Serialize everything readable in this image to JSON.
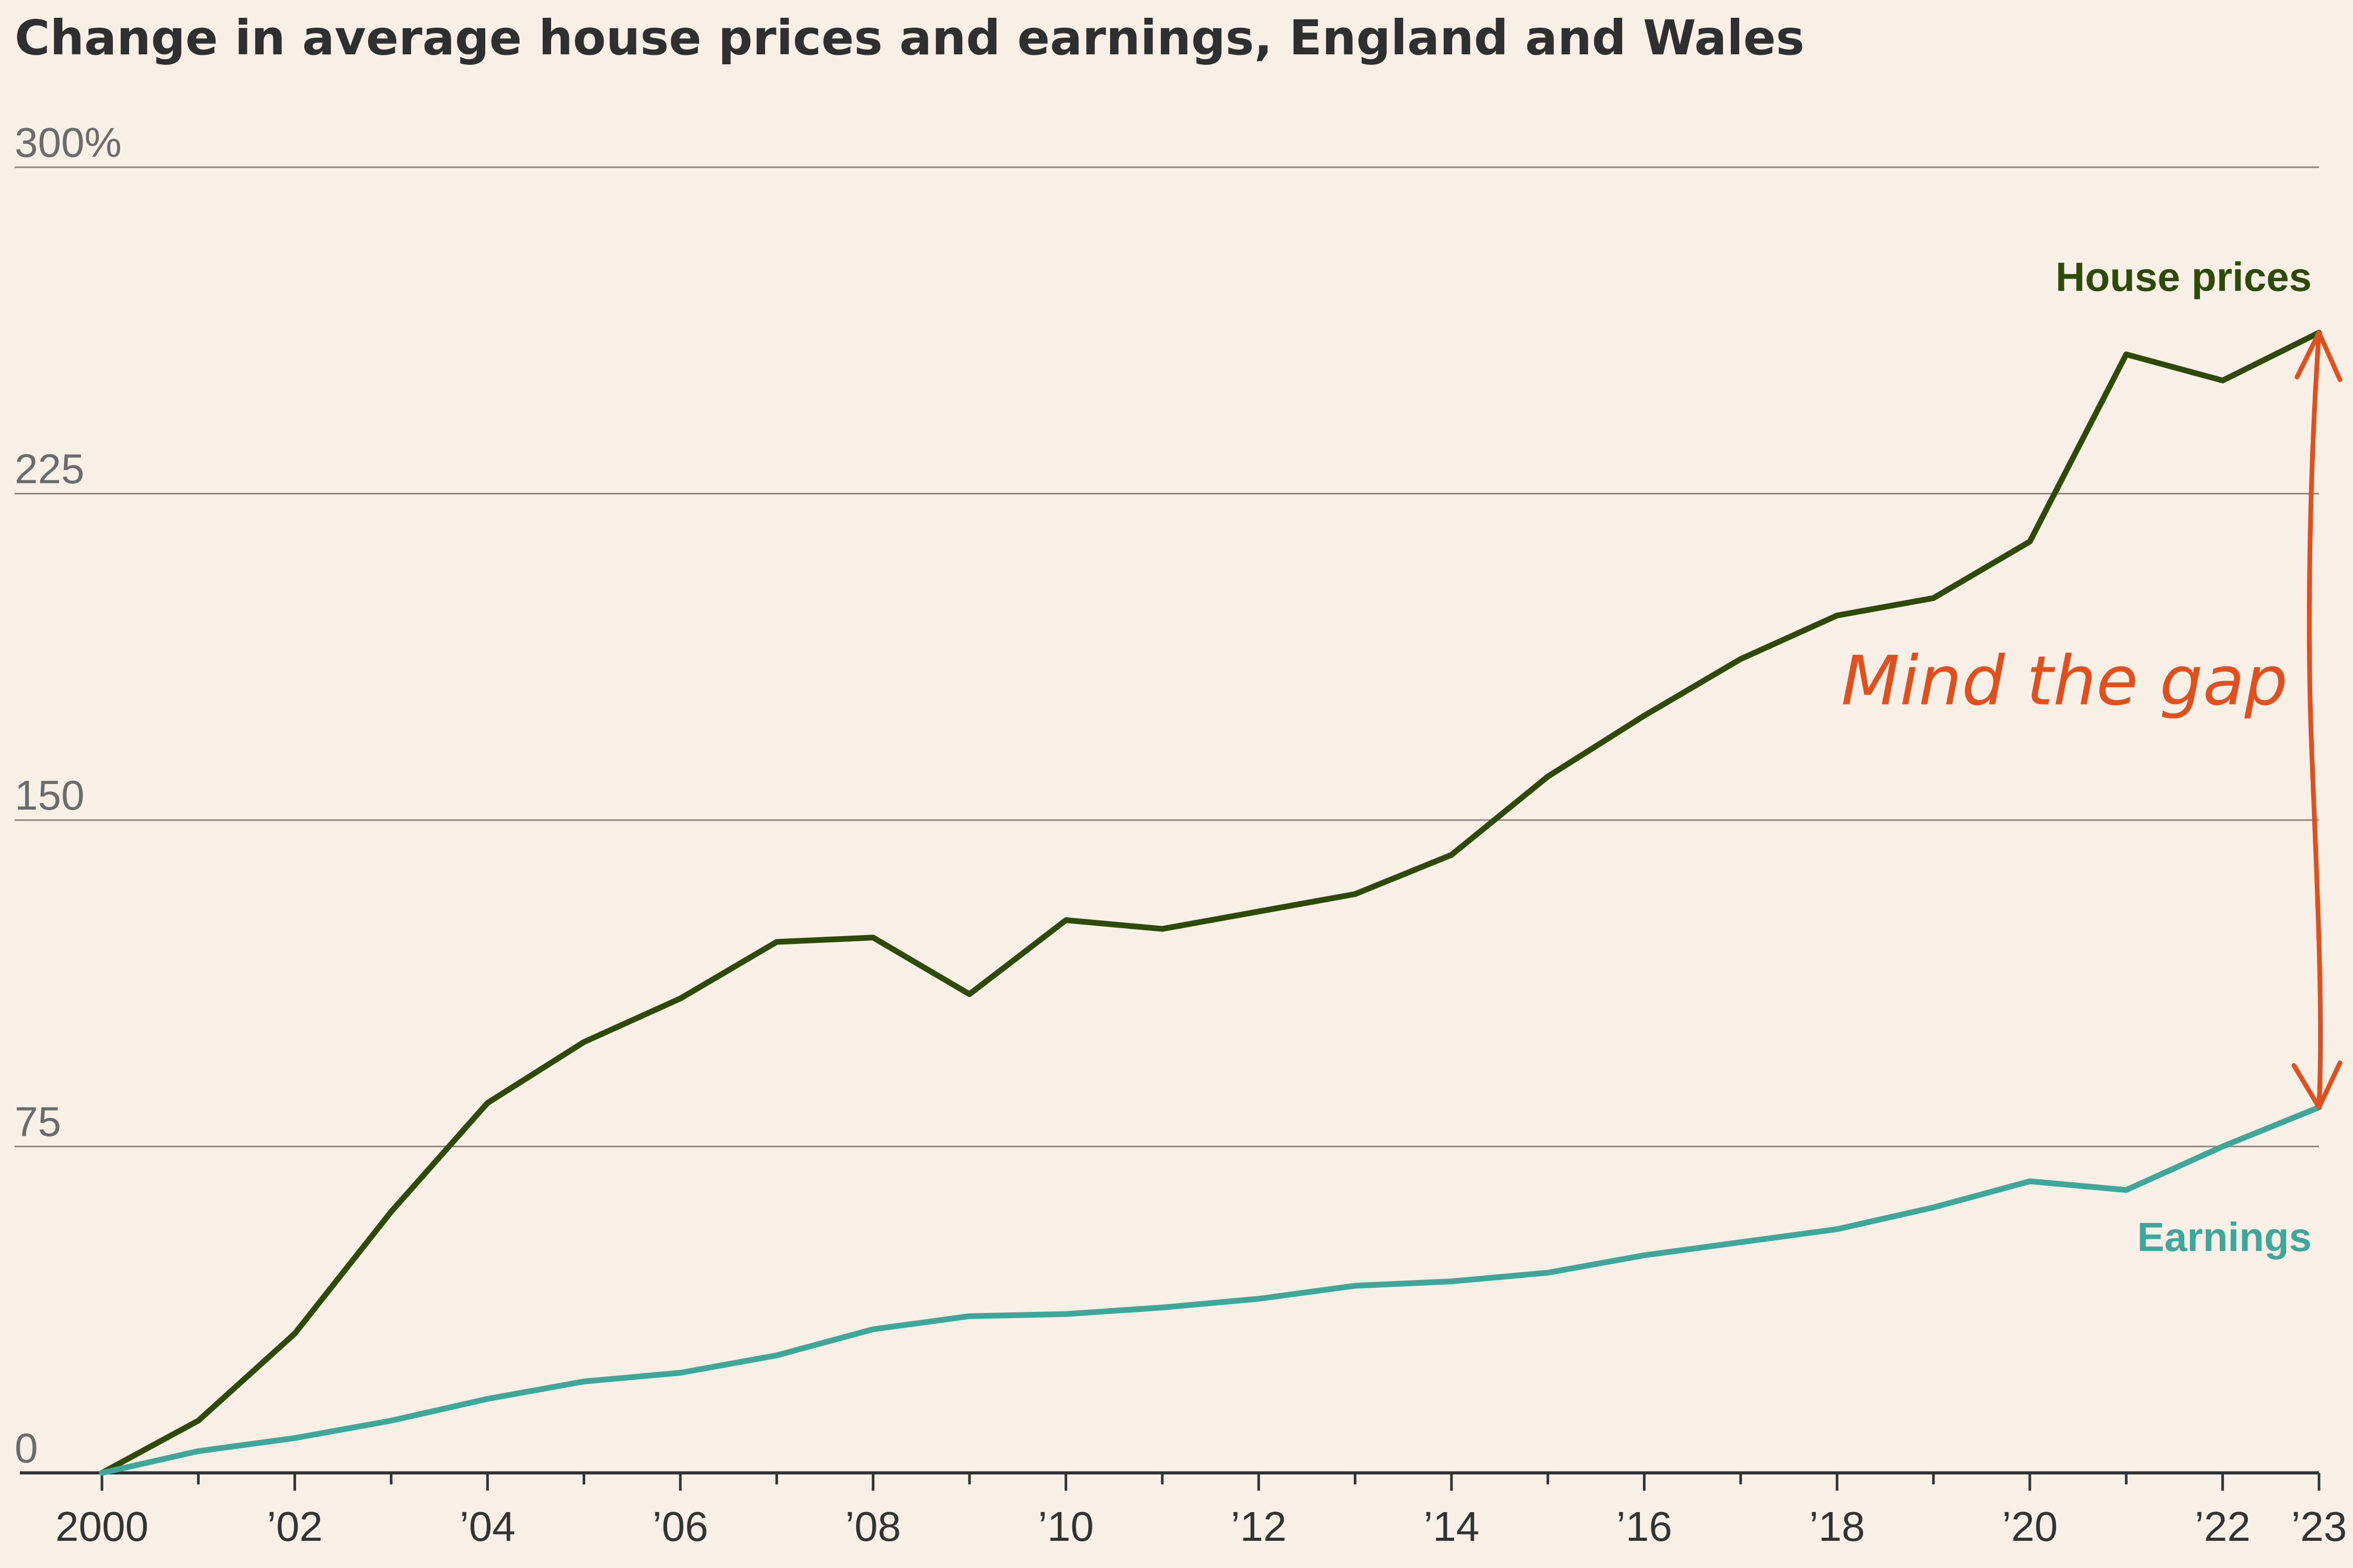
{
  "chart_data": {
    "type": "line",
    "title": "Change in average house prices and earnings, England and Wales",
    "xlabel": "",
    "ylabel": "",
    "ylim": [
      0,
      300
    ],
    "yticks": [
      0,
      75,
      150,
      225,
      300
    ],
    "ytick_labels": [
      "0",
      "75",
      "150",
      "225",
      "300%"
    ],
    "x": [
      2000,
      2001,
      2002,
      2003,
      2004,
      2005,
      2006,
      2007,
      2008,
      2009,
      2010,
      2011,
      2012,
      2013,
      2014,
      2015,
      2016,
      2017,
      2018,
      2019,
      2020,
      2021,
      2022,
      2023
    ],
    "xlim": [
      2000,
      2023
    ],
    "xticks": [
      2000,
      2002,
      2004,
      2006,
      2008,
      2010,
      2012,
      2014,
      2016,
      2018,
      2020,
      2022,
      2023
    ],
    "xtick_labels": [
      "2000",
      "’02",
      "’04",
      "’06",
      "’08",
      "’10",
      "’12",
      "’14",
      "’16",
      "’18",
      "’20",
      "’22",
      "’23"
    ],
    "grid": true,
    "series": [
      {
        "name": "House prices",
        "color": "#2d4a08",
        "values": [
          0,
          12,
          32,
          60,
          85,
          99,
          109,
          122,
          123,
          110,
          127,
          125,
          129,
          133,
          142,
          160,
          174,
          187,
          197,
          201,
          214,
          257,
          251,
          262
        ]
      },
      {
        "name": "Earnings",
        "color": "#3fa69a",
        "values": [
          0,
          5,
          8,
          12,
          17,
          21,
          23,
          27,
          33,
          36,
          36.5,
          38,
          40,
          43,
          44,
          46,
          50,
          53,
          56,
          61,
          67,
          65,
          75,
          84
        ]
      }
    ],
    "annotations": [
      {
        "text": "Mind the gap",
        "color": "#e0501e"
      }
    ]
  }
}
